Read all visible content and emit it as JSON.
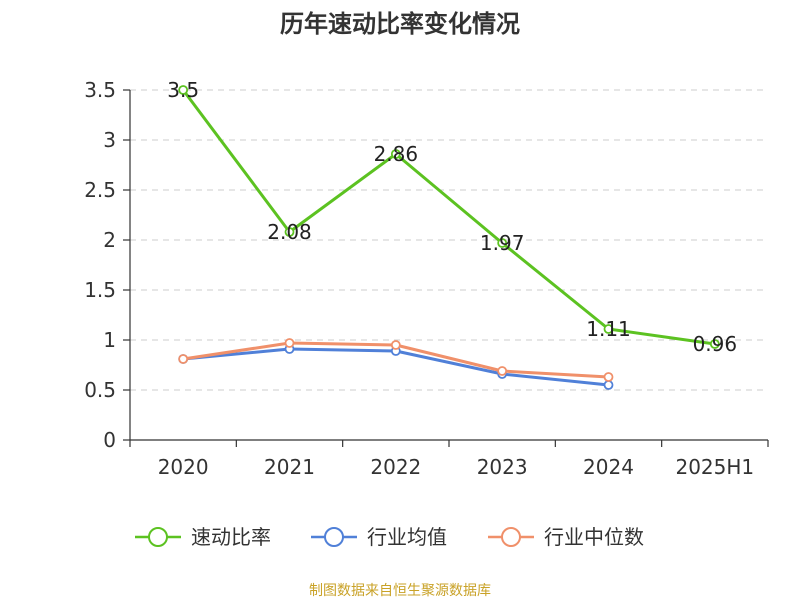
{
  "chart_data": {
    "type": "line",
    "title": "历年速动比率变化情况",
    "categories": [
      "2020",
      "2021",
      "2022",
      "2023",
      "2024",
      "2025H1"
    ],
    "ylim": [
      0,
      3.5
    ],
    "yticks": [
      "0",
      "0.5",
      "1",
      "1.5",
      "2",
      "2.5",
      "3",
      "3.5"
    ],
    "grid": true,
    "legend_position": "bottom",
    "series": [
      {
        "name": "速动比率",
        "values": [
          3.5,
          2.08,
          2.86,
          1.97,
          1.11,
          0.96
        ],
        "labels": [
          "3.5",
          "2.08",
          "2.86",
          "1.97",
          "1.11",
          "0.96"
        ],
        "color": "#5cc221"
      },
      {
        "name": "行业均值",
        "values": [
          0.81,
          0.91,
          0.89,
          0.66,
          0.55,
          null
        ],
        "color": "#5080d8"
      },
      {
        "name": "行业中位数",
        "values": [
          0.81,
          0.97,
          0.95,
          0.69,
          0.63,
          null
        ],
        "color": "#f0906a"
      }
    ]
  },
  "source": "制图数据来自恒生聚源数据库"
}
